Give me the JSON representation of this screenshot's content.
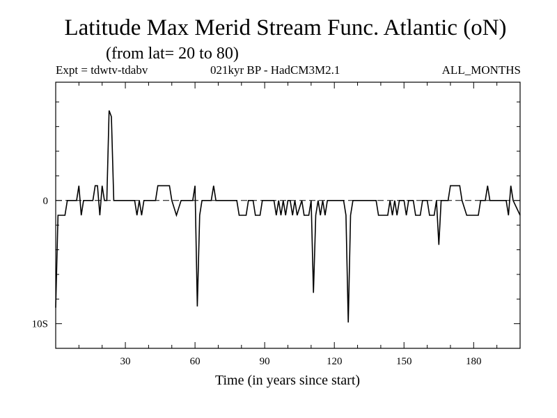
{
  "chart_data": {
    "type": "line",
    "title": "Latitude Max Merid Stream Func. Atlantic (oN)",
    "subtitle": "(from lat= 20 to 80)",
    "header_left": "Expt = tdwtv-tdabv",
    "header_center": "021kyr BP - HadCM3M2.1",
    "header_right": "ALL_MONTHS",
    "xlabel": "Time (in years since start)",
    "ylabel": "",
    "xlim": [
      0,
      200
    ],
    "ylim": [
      -12,
      9.6
    ],
    "x_ticks": [
      30,
      60,
      90,
      120,
      150,
      180
    ],
    "y_ticks": [
      {
        "value": 0,
        "label": "0"
      },
      {
        "value": -10,
        "label": "10S"
      }
    ],
    "grid": false,
    "zero_line": true,
    "series": [
      {
        "color": "#000000",
        "points": [
          [
            0,
            -8.7
          ],
          [
            1,
            -1.2
          ],
          [
            2,
            -1.2
          ],
          [
            3,
            -1.2
          ],
          [
            4,
            -1.2
          ],
          [
            5,
            0
          ],
          [
            9,
            0
          ],
          [
            10,
            1.2
          ],
          [
            11,
            -1.2
          ],
          [
            12,
            0
          ],
          [
            16,
            0
          ],
          [
            17,
            1.2
          ],
          [
            18,
            1.2
          ],
          [
            19,
            -1.2
          ],
          [
            20,
            1.2
          ],
          [
            21,
            0
          ],
          [
            22,
            0
          ],
          [
            23,
            7.3
          ],
          [
            24,
            6.8
          ],
          [
            25,
            0
          ],
          [
            34,
            0
          ],
          [
            35,
            -1.2
          ],
          [
            36,
            0
          ],
          [
            37,
            -1.2
          ],
          [
            38,
            0
          ],
          [
            43,
            0
          ],
          [
            44,
            1.2
          ],
          [
            49,
            1.2
          ],
          [
            50,
            0
          ],
          [
            52,
            -1.2
          ],
          [
            54,
            0
          ],
          [
            59,
            0
          ],
          [
            60,
            1.2
          ],
          [
            61,
            -8.6
          ],
          [
            62,
            -1.2
          ],
          [
            63,
            0
          ],
          [
            67,
            0
          ],
          [
            68,
            1.2
          ],
          [
            69,
            0
          ],
          [
            78,
            0
          ],
          [
            79,
            -1.2
          ],
          [
            82,
            -1.2
          ],
          [
            83,
            0
          ],
          [
            85,
            0
          ],
          [
            86,
            -1.2
          ],
          [
            88,
            -1.2
          ],
          [
            89,
            0
          ],
          [
            94,
            0
          ],
          [
            95,
            -1.2
          ],
          [
            96,
            0
          ],
          [
            97,
            -1.2
          ],
          [
            98,
            0
          ],
          [
            99,
            -1.2
          ],
          [
            100,
            0
          ],
          [
            101,
            0
          ],
          [
            102,
            -1.2
          ],
          [
            103,
            0
          ],
          [
            104,
            -1.2
          ],
          [
            106,
            0
          ],
          [
            107,
            -1.2
          ],
          [
            109,
            -1.2
          ],
          [
            110,
            0
          ],
          [
            111,
            -7.5
          ],
          [
            112,
            -1.2
          ],
          [
            113,
            0
          ],
          [
            114,
            -1.2
          ],
          [
            115,
            0
          ],
          [
            116,
            -1.2
          ],
          [
            117,
            0
          ],
          [
            124,
            0
          ],
          [
            125,
            -1.2
          ],
          [
            126,
            -9.9
          ],
          [
            127,
            -1.2
          ],
          [
            128,
            0
          ],
          [
            138,
            0
          ],
          [
            139,
            -1.2
          ],
          [
            143,
            -1.2
          ],
          [
            144,
            0
          ],
          [
            145,
            -1.2
          ],
          [
            146,
            0
          ],
          [
            147,
            -1.2
          ],
          [
            148,
            0
          ],
          [
            150,
            0
          ],
          [
            151,
            -1.2
          ],
          [
            152,
            0
          ],
          [
            154,
            0
          ],
          [
            155,
            -1.2
          ],
          [
            157,
            -1.2
          ],
          [
            158,
            0
          ],
          [
            160,
            0
          ],
          [
            161,
            -1.2
          ],
          [
            163,
            -1.2
          ],
          [
            164,
            0
          ],
          [
            165,
            -3.6
          ],
          [
            166,
            0
          ],
          [
            169,
            0
          ],
          [
            170,
            1.2
          ],
          [
            174,
            1.2
          ],
          [
            175,
            0
          ],
          [
            177,
            -1.2
          ],
          [
            182,
            -1.2
          ],
          [
            183,
            0
          ],
          [
            185,
            0
          ],
          [
            186,
            1.2
          ],
          [
            187,
            0
          ],
          [
            194,
            0
          ],
          [
            195,
            -1.2
          ],
          [
            196,
            1.2
          ],
          [
            197,
            0
          ],
          [
            200,
            -1.2
          ]
        ]
      }
    ]
  }
}
